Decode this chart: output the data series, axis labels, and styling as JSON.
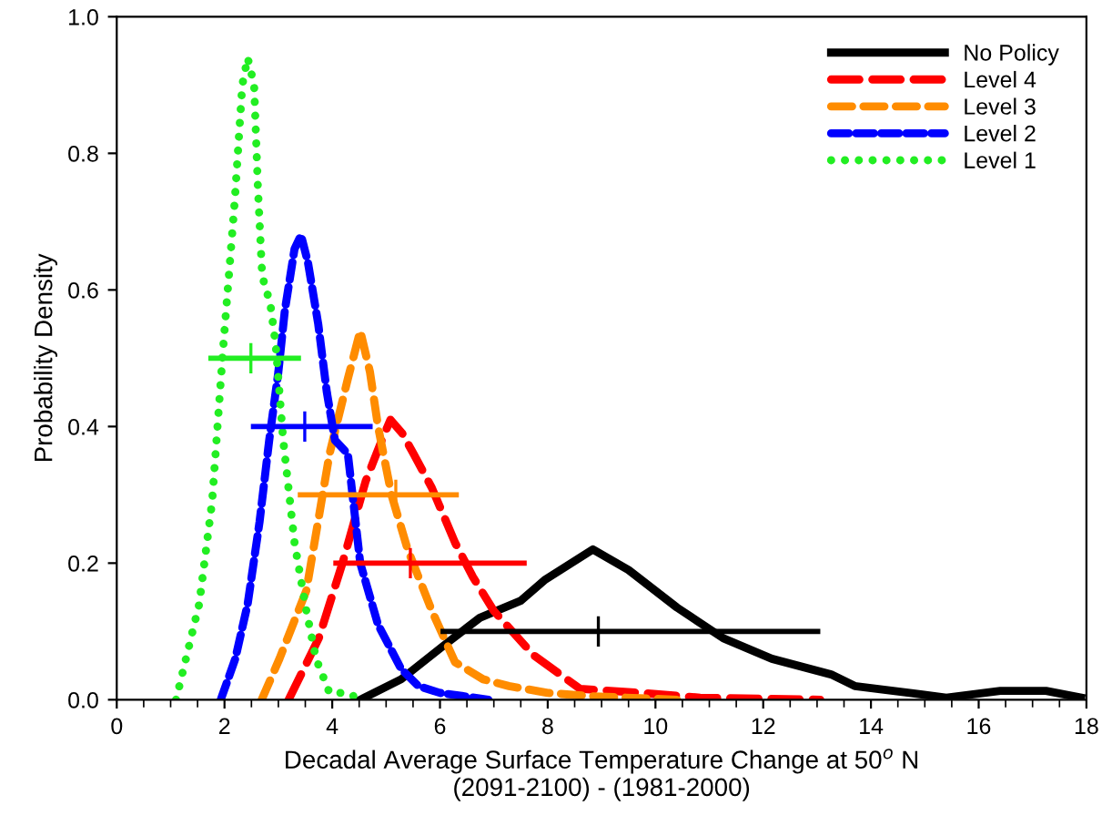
{
  "chart_data": {
    "type": "line",
    "xlabel": "Decadal Average Surface Temperature Change at 50$^{o}$ N\n(2091-2100) - (1981-2000)",
    "ylabel": "Probability Density",
    "xlim": [
      0,
      18
    ],
    "xticks": [
      0,
      2,
      4,
      6,
      8,
      10,
      12,
      14,
      16,
      18
    ],
    "ylim": [
      0,
      1.0
    ],
    "yticks": [
      {
        "value": 0,
        "label": "0.0"
      },
      0.2,
      0.4,
      0.6,
      0.8,
      {
        "value": 1.0,
        "label": "1.0"
      }
    ],
    "grid": false,
    "legend": "top right",
    "marker": "none",
    "series": [
      {
        "name": "No Policy",
        "color": "#000000",
        "line_style": "solid",
        "x": [
          4.52,
          5.28,
          6.08,
          6.74,
          7.5,
          7.94,
          8.84,
          9.5,
          10.4,
          11.26,
          12.16,
          13.26,
          13.7,
          14.72,
          15.4,
          16.4,
          17.25,
          17.9
        ],
        "values": [
          0,
          0.03,
          0.08,
          0.12,
          0.145,
          0.175,
          0.22,
          0.19,
          0.135,
          0.09,
          0.06,
          0.037,
          0.02,
          0.01,
          0.003,
          0.013,
          0.013,
          0.003
        ]
      },
      {
        "name": "Level 4",
        "color": "#ff0000",
        "line_style": "dashed",
        "x": [
          3.19,
          3.75,
          4.19,
          4.62,
          4.92,
          5.08,
          5.3,
          5.51,
          5.85,
          6.28,
          6.61,
          7.0,
          7.74,
          8.6,
          9.73,
          10.83,
          13.06
        ],
        "values": [
          0,
          0.09,
          0.2,
          0.32,
          0.38,
          0.41,
          0.39,
          0.36,
          0.31,
          0.23,
          0.18,
          0.13,
          0.065,
          0.016,
          0.01,
          0.003,
          0.0
        ]
      },
      {
        "name": "Level 3",
        "color": "#ff8c00",
        "line_style": "dashed",
        "x": [
          2.69,
          3.02,
          3.52,
          3.95,
          4.29,
          4.52,
          4.7,
          4.85,
          5.1,
          5.4,
          5.85,
          6.28,
          6.8,
          7.28,
          8.0,
          8.84,
          10.4
        ],
        "values": [
          0,
          0.06,
          0.16,
          0.36,
          0.47,
          0.54,
          0.48,
          0.4,
          0.3,
          0.22,
          0.13,
          0.055,
          0.03,
          0.02,
          0.01,
          0.005,
          0.0
        ]
      },
      {
        "name": "Level 2",
        "color": "#0000ff",
        "line_style": "dashed",
        "x": [
          1.93,
          2.2,
          2.43,
          2.65,
          2.83,
          3.0,
          3.12,
          3.3,
          3.42,
          3.55,
          3.74,
          3.9,
          4.05,
          4.29,
          4.52,
          4.85,
          5.28,
          5.6,
          6.0,
          6.9
        ],
        "values": [
          0,
          0.06,
          0.14,
          0.26,
          0.38,
          0.48,
          0.57,
          0.66,
          0.68,
          0.64,
          0.55,
          0.45,
          0.38,
          0.36,
          0.2,
          0.11,
          0.045,
          0.02,
          0.01,
          0.0
        ]
      },
      {
        "name": "Level 1",
        "color": "#22ee22",
        "line_style": "dotted",
        "x": [
          1.1,
          1.53,
          1.77,
          1.97,
          2.19,
          2.33,
          2.43,
          2.55,
          2.62,
          2.7,
          2.85,
          2.95,
          3.09,
          3.3,
          3.52,
          3.7,
          3.95,
          4.3,
          4.5
        ],
        "values": [
          0,
          0.14,
          0.29,
          0.51,
          0.73,
          0.9,
          0.94,
          0.9,
          0.75,
          0.62,
          0.58,
          0.52,
          0.38,
          0.23,
          0.13,
          0.06,
          0.01,
          0.01,
          0.0
        ]
      },
      {
        "type": "scatter",
        "color": "#000000",
        "marker": "cross",
        "x": [
          8.94
        ],
        "values": [
          0.1
        ],
        "xerrors": [
          [
            6.01,
            13.06
          ]
        ]
      },
      {
        "type": "scatter",
        "color": "#ff0000",
        "marker": "cross",
        "x": [
          5.45
        ],
        "values": [
          0.2
        ],
        "xerrors": [
          [
            4.02,
            7.61
          ]
        ]
      },
      {
        "type": "scatter",
        "color": "#ff8c00",
        "marker": "cross",
        "x": [
          5.18
        ],
        "values": [
          0.3
        ],
        "xerrors": [
          [
            3.36,
            6.35
          ]
        ]
      },
      {
        "type": "scatter",
        "color": "#0000ff",
        "marker": "cross",
        "x": [
          3.49
        ],
        "values": [
          0.4
        ],
        "xerrors": [
          [
            2.49,
            4.75
          ]
        ]
      },
      {
        "type": "scatter",
        "color": "#22ee22",
        "marker": "cross",
        "x": [
          2.49
        ],
        "values": [
          0.5
        ],
        "xerrors": [
          [
            1.7,
            3.42
          ]
        ]
      }
    ]
  }
}
